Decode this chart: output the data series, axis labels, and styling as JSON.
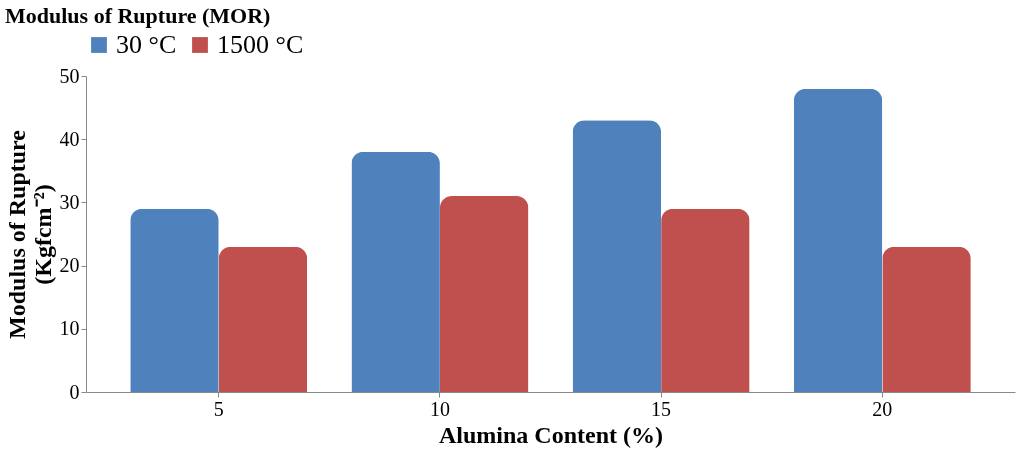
{
  "chart_data": {
    "type": "bar",
    "title": "Modulus of Rupture (MOR)",
    "xlabel": "Alumina Content (%)",
    "ylabel": "Modulus of Rupture\n(Kgfcm⁻²)",
    "categories": [
      "5",
      "10",
      "15",
      "20"
    ],
    "series": [
      {
        "name": "30 °C",
        "color": "#4f81bd",
        "values": [
          29,
          38,
          43,
          48
        ]
      },
      {
        "name": "1500 °C",
        "color": "#c0504d",
        "values": [
          23,
          31,
          29,
          23
        ]
      }
    ],
    "ylim": [
      0,
      50
    ],
    "yticks": [
      0,
      10,
      20,
      30,
      40,
      50
    ],
    "grid": false,
    "legend": "top"
  }
}
